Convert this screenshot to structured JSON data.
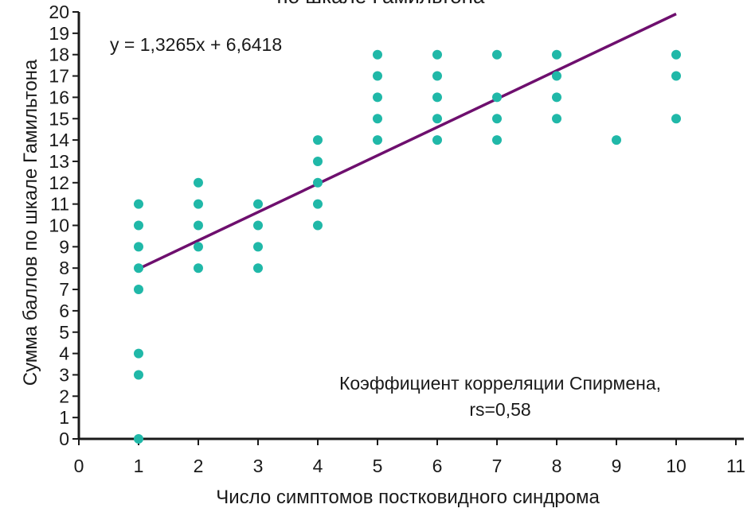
{
  "chart_data": {
    "type": "scatter",
    "title": "по шкале Гамильтона",
    "xlabel": "Число симптомов постковидного синдрома",
    "ylabel": "Сумма баллов по шкале Гамильтона",
    "xlim": [
      0,
      11
    ],
    "ylim": [
      0,
      20
    ],
    "x_ticks": [
      0,
      1,
      2,
      3,
      4,
      5,
      6,
      7,
      8,
      9,
      10,
      11
    ],
    "y_ticks": [
      0,
      1,
      2,
      3,
      4,
      5,
      6,
      7,
      8,
      9,
      10,
      11,
      12,
      13,
      14,
      15,
      16,
      17,
      18,
      19,
      20
    ],
    "grid": false,
    "legend": "none",
    "series": [
      {
        "kind": "points",
        "points": [
          [
            1,
            0
          ],
          [
            1,
            3
          ],
          [
            1,
            4
          ],
          [
            1,
            7
          ],
          [
            1,
            8
          ],
          [
            1,
            9
          ],
          [
            1,
            10
          ],
          [
            1,
            11
          ],
          [
            2,
            8
          ],
          [
            2,
            9
          ],
          [
            2,
            10
          ],
          [
            2,
            11
          ],
          [
            2,
            12
          ],
          [
            3,
            8
          ],
          [
            3,
            9
          ],
          [
            3,
            10
          ],
          [
            3,
            11
          ],
          [
            4,
            10
          ],
          [
            4,
            11
          ],
          [
            4,
            12
          ],
          [
            4,
            13
          ],
          [
            4,
            14
          ],
          [
            5,
            14
          ],
          [
            5,
            15
          ],
          [
            5,
            16
          ],
          [
            5,
            17
          ],
          [
            5,
            18
          ],
          [
            6,
            14
          ],
          [
            6,
            15
          ],
          [
            6,
            16
          ],
          [
            6,
            17
          ],
          [
            6,
            18
          ],
          [
            7,
            14
          ],
          [
            7,
            15
          ],
          [
            7,
            16
          ],
          [
            7,
            18
          ],
          [
            8,
            15
          ],
          [
            8,
            16
          ],
          [
            8,
            17
          ],
          [
            8,
            18
          ],
          [
            9,
            14
          ],
          [
            10,
            15
          ],
          [
            10,
            17
          ],
          [
            10,
            18
          ]
        ]
      },
      {
        "kind": "trendline",
        "slope": 1.3265,
        "intercept": 6.6418,
        "x_range": [
          1,
          10
        ]
      }
    ],
    "annotations": {
      "equation": "y = 1,3265x + 6,6418",
      "correlation_line1": "Коэффициент корреляции Спирмена,",
      "correlation_line2": "rs=0,58"
    },
    "colors": {
      "points": "#20b8a8",
      "trendline": "#6e0f6e",
      "axis": "#1a1a1a"
    }
  }
}
